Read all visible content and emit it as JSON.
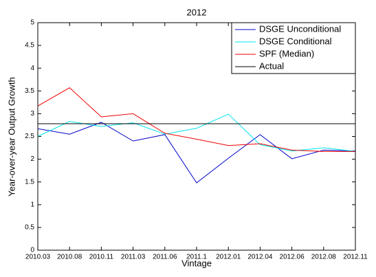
{
  "chart_data": {
    "type": "line",
    "title": "2012",
    "x_label": "Vintage",
    "y_label": "Year-over-year Output Growth",
    "categories": [
      "2010.03",
      "2010.08",
      "2010.11",
      "2011.03",
      "2011.06",
      "2011.1",
      "2012.01",
      "2012.04",
      "2012.06",
      "2012.08",
      "2012.11"
    ],
    "series": [
      {
        "name": "DSGE Unconditional",
        "color": "#0000cc",
        "values": [
          2.67,
          2.55,
          2.81,
          2.4,
          2.54,
          1.48,
          2.02,
          2.54,
          2.01,
          2.2,
          2.18
        ]
      },
      {
        "name": "DSGE Conditional",
        "color": "#00e5ee",
        "values": [
          2.5,
          2.83,
          2.72,
          2.8,
          2.55,
          2.68,
          2.99,
          2.32,
          2.18,
          2.25,
          2.17
        ]
      },
      {
        "name": "SPF (Median)",
        "color": "#ee0000",
        "values": [
          3.17,
          3.57,
          2.93,
          3.0,
          2.57,
          2.44,
          2.3,
          2.34,
          2.2,
          2.17,
          2.17
        ]
      },
      {
        "name": "Actual",
        "color": "#000000",
        "values": [
          2.78,
          2.78,
          2.78,
          2.78,
          2.78,
          2.78,
          2.78,
          2.78,
          2.78,
          2.78,
          2.78
        ]
      }
    ],
    "ylim": [
      0,
      5
    ],
    "yticks": [
      0,
      0.5,
      1,
      1.5,
      2,
      2.5,
      3,
      3.5,
      4,
      4.5,
      5
    ],
    "grid": false,
    "legend": "top-right"
  }
}
